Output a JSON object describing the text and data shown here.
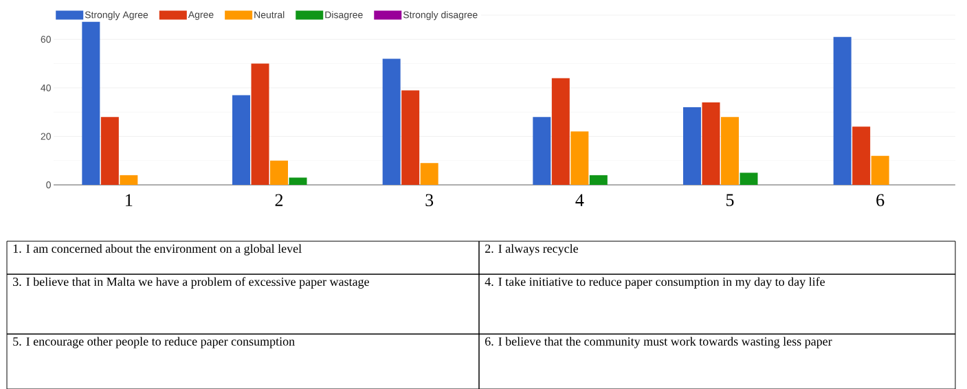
{
  "chart_data": {
    "type": "bar",
    "categories": [
      "1",
      "2",
      "3",
      "4",
      "5",
      "6"
    ],
    "series": [
      {
        "name": "Strongly Agree",
        "color": "#3366cc",
        "values": [
          68,
          37,
          52,
          28,
          32,
          61
        ]
      },
      {
        "name": "Agree",
        "color": "#dc3912",
        "values": [
          28,
          50,
          39,
          44,
          34,
          24
        ]
      },
      {
        "name": "Neutral",
        "color": "#ff9900",
        "values": [
          4,
          10,
          9,
          22,
          28,
          12
        ]
      },
      {
        "name": "Disagree",
        "color": "#109618",
        "values": [
          0,
          3,
          0,
          4,
          5,
          0
        ]
      },
      {
        "name": "Strongly disagree",
        "color": "#990099",
        "values": [
          0,
          0,
          0,
          0,
          0,
          0
        ]
      }
    ],
    "ylim": [
      0,
      70
    ],
    "yticks": [
      0,
      20,
      40,
      60,
      {
        "value": 70,
        "label": null
      }
    ],
    "grid": true,
    "legend": "top left",
    "annotations": [
      "1.  I am concerned about the environment on a global level",
      "2.  I always recycle",
      "3.  I believe that in Malta we have a problem of excessive paper wastage",
      "4.  I take initiative to reduce paper consumption in my day to day life",
      "5.  I encourage other people to reduce paper consumption",
      "6.  I believe that the community must work towards wasting less paper"
    ]
  }
}
